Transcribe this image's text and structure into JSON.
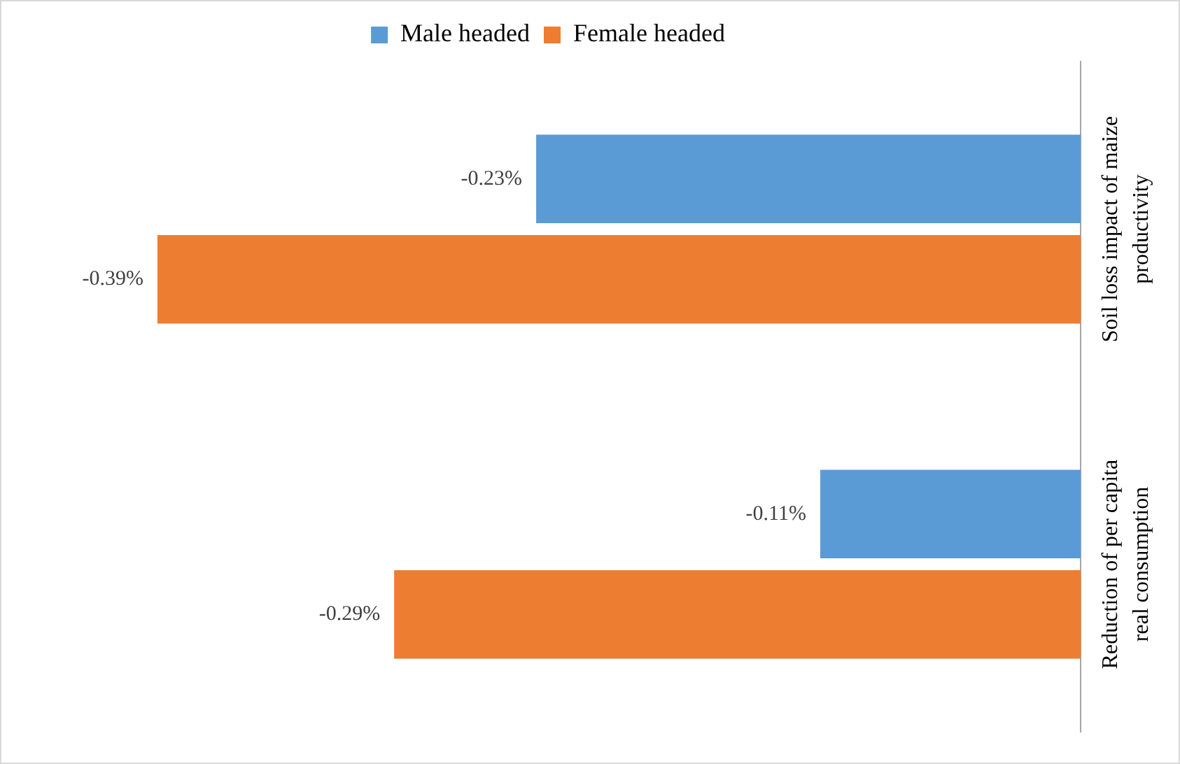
{
  "chart_data": {
    "type": "bar",
    "orientation": "horizontal",
    "categories": [
      "Soil loss impact of maize productivity",
      "Reduction of per capita real consumption"
    ],
    "series": [
      {
        "name": "Male headed",
        "color": "#5b9bd5",
        "values": [
          -0.23,
          -0.11
        ],
        "value_labels": [
          "-0.23%",
          "-0.11%"
        ]
      },
      {
        "name": "Female headed",
        "color": "#ed7d31",
        "values": [
          -0.39,
          -0.29
        ],
        "value_labels": [
          "-0.39%",
          "-0.29%"
        ]
      }
    ],
    "legend": "top",
    "grid": false
  }
}
